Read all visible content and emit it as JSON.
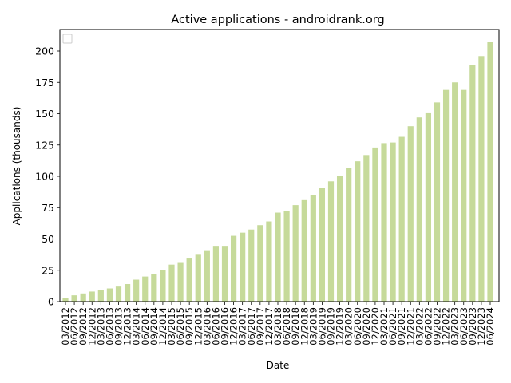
{
  "chart_data": {
    "type": "bar",
    "title": "Active applications - androidrank.org",
    "xlabel": "Date",
    "ylabel": "Applications (thousands)",
    "ylim": [
      0,
      218
    ],
    "yticks": [
      0,
      25,
      50,
      75,
      100,
      125,
      150,
      175,
      200
    ],
    "grid": false,
    "legend": {
      "placement": "top-left",
      "entries": []
    },
    "bar_color": "#c6da9a",
    "categories": [
      "03/2012",
      "06/2012",
      "09/2012",
      "12/2012",
      "03/2013",
      "06/2013",
      "09/2013",
      "12/2013",
      "03/2014",
      "06/2014",
      "09/2014",
      "12/2014",
      "03/2015",
      "06/2015",
      "09/2015",
      "12/2015",
      "03/2016",
      "06/2016",
      "09/2016",
      "12/2016",
      "03/2017",
      "06/2017",
      "09/2017",
      "12/2017",
      "03/2018",
      "06/2018",
      "09/2018",
      "12/2018",
      "03/2019",
      "06/2019",
      "09/2019",
      "12/2019",
      "03/2020",
      "06/2020",
      "09/2020",
      "12/2020",
      "03/2021",
      "06/2021",
      "09/2021",
      "12/2021",
      "03/2022",
      "06/2022",
      "09/2022",
      "12/2022",
      "03/2023",
      "06/2023",
      "09/2023",
      "12/2023",
      "06/2024"
    ],
    "values": [
      3,
      5,
      6.5,
      8,
      9,
      10.5,
      12,
      14,
      17.5,
      20,
      22,
      25,
      29.5,
      31.5,
      35,
      38,
      41,
      44.5,
      44.5,
      52.5,
      55,
      57.5,
      61,
      64,
      71,
      72,
      77,
      81,
      85,
      91,
      96,
      100,
      107,
      112,
      117,
      123,
      126.5,
      127,
      131.5,
      140,
      147,
      151,
      159,
      169,
      175,
      169,
      189,
      196,
      207
    ]
  }
}
